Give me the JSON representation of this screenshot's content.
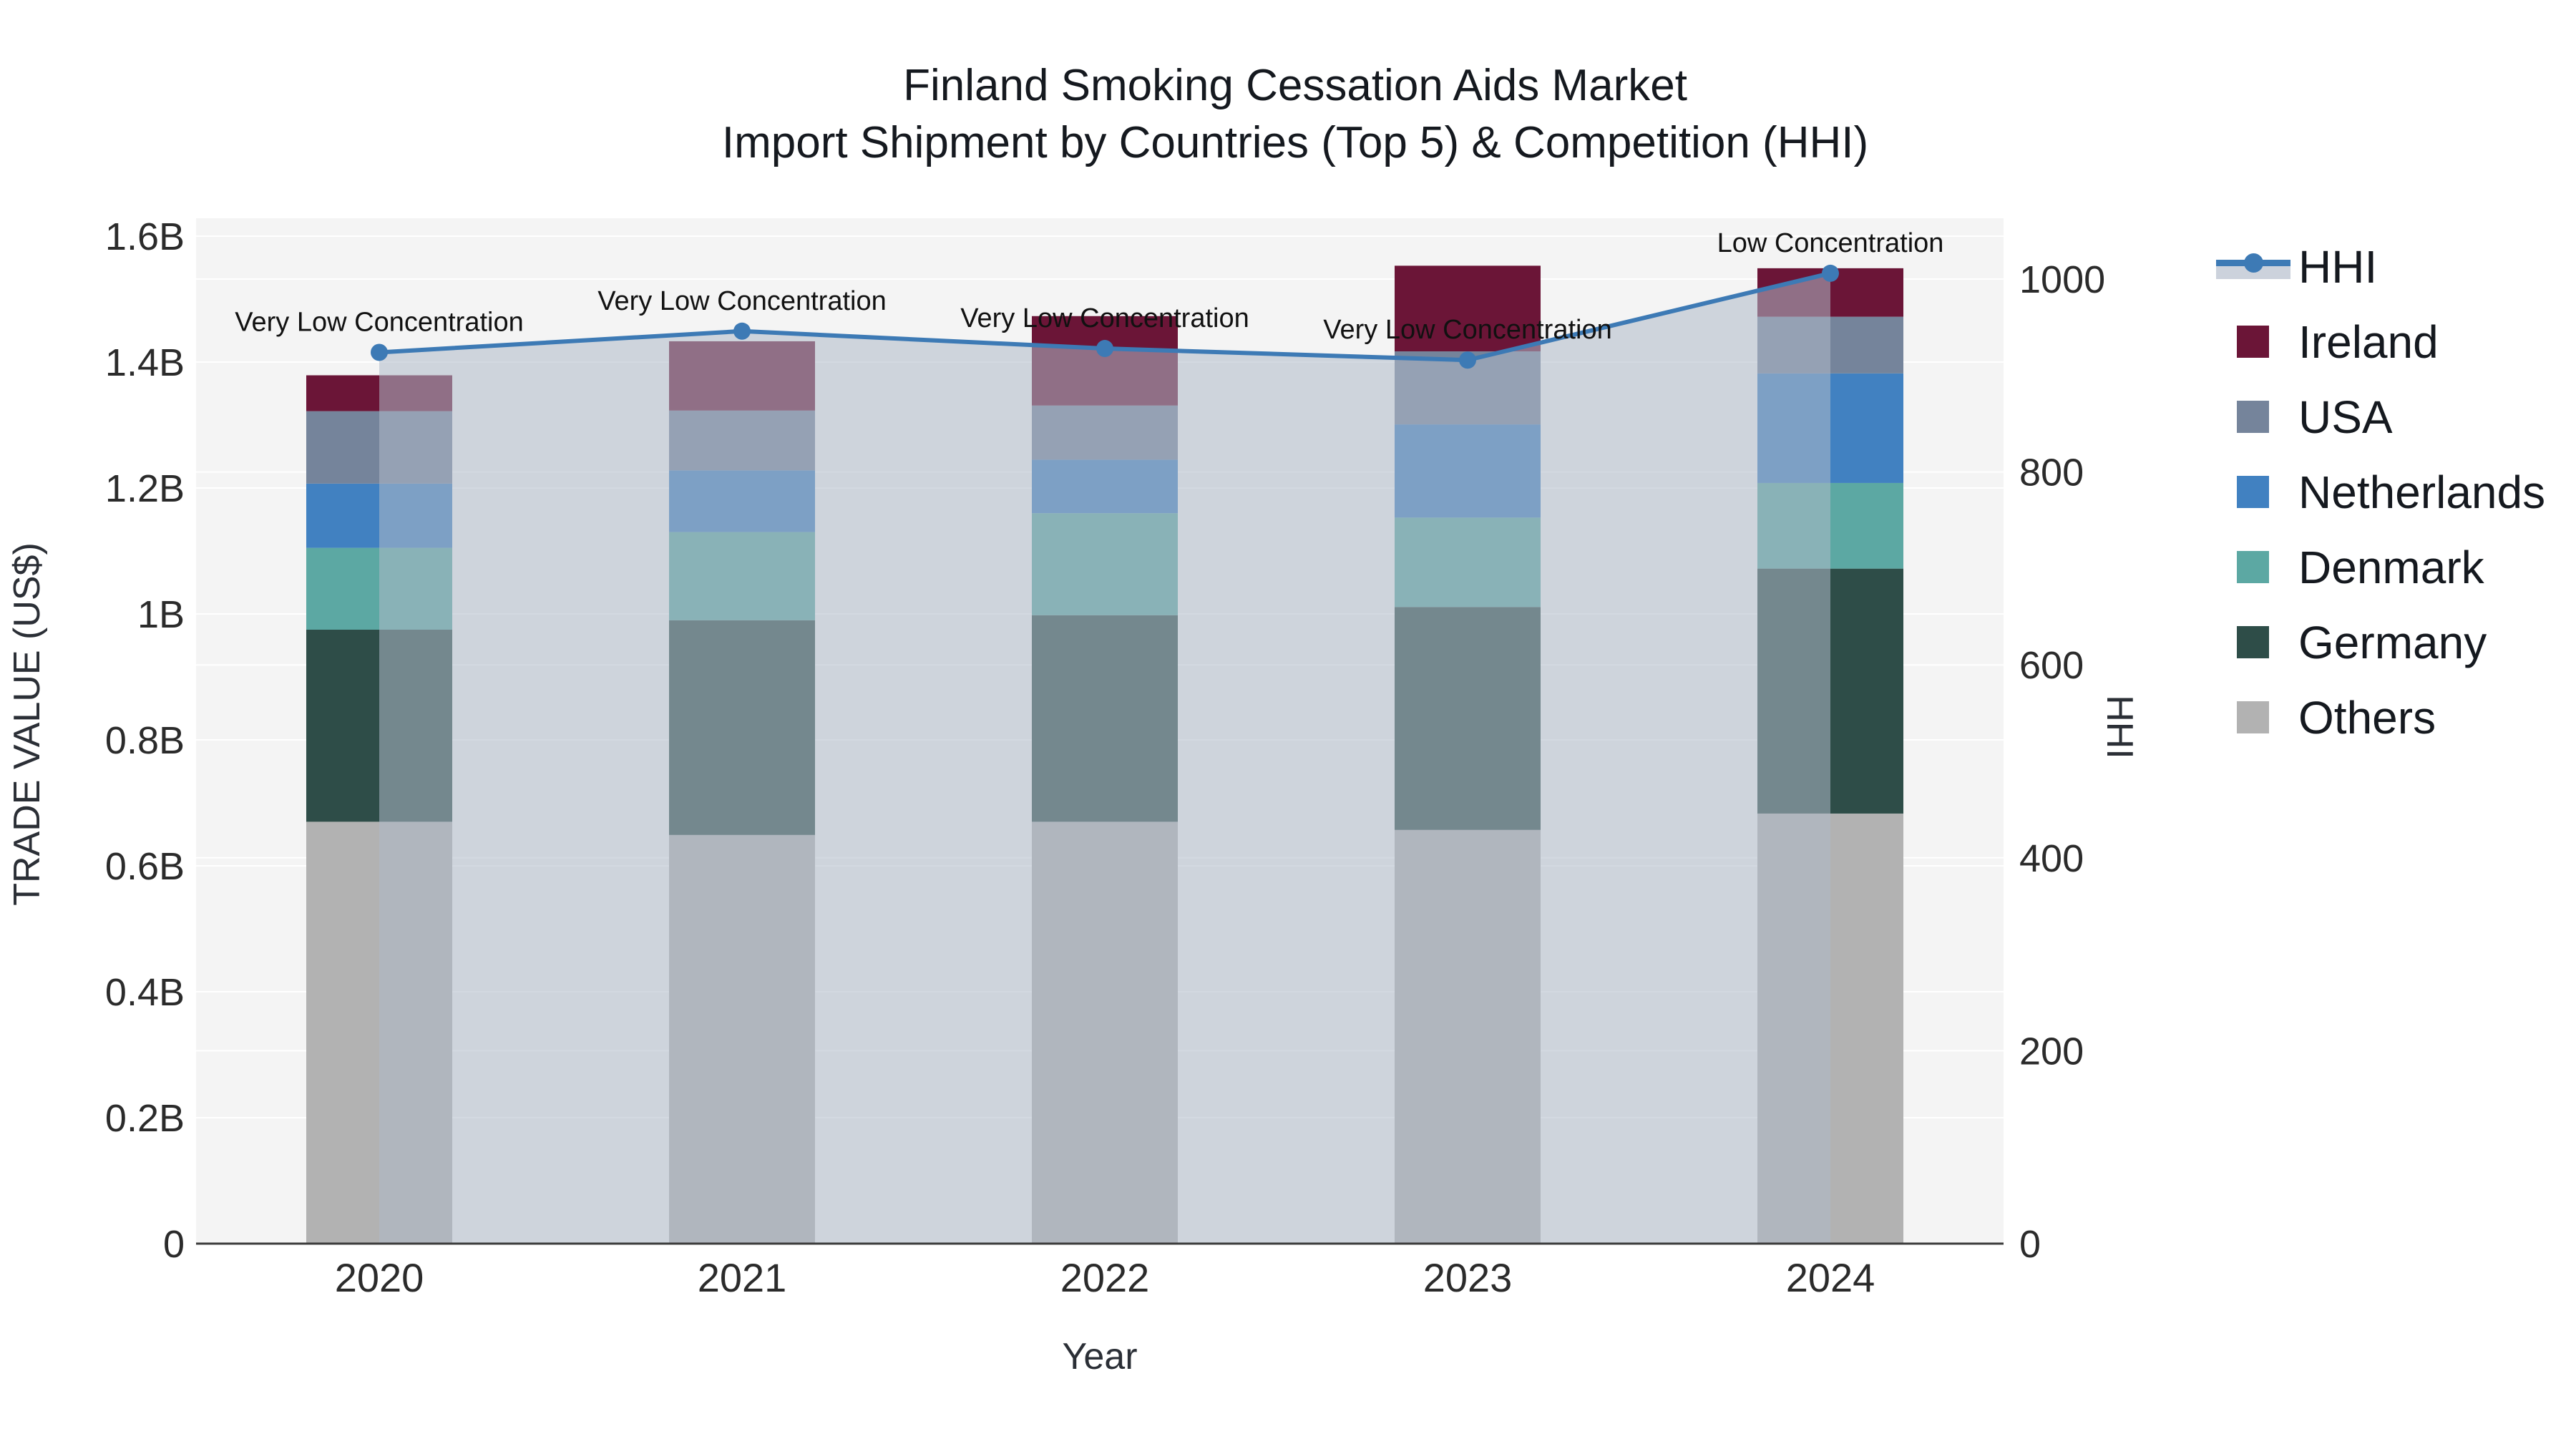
{
  "title": {
    "line1": "Finland Smoking Cessation Aids Market",
    "line2": "Import Shipment by Countries (Top 5) & Competition (HHI)"
  },
  "axes": {
    "x": {
      "title": "Year"
    },
    "left": {
      "title": "TRADE VALUE (US$)",
      "ticks": [
        {
          "label": "1.6B",
          "value": 1.6
        },
        {
          "label": "1.4B",
          "value": 1.4
        },
        {
          "label": "1.2B",
          "value": 1.2
        },
        {
          "label": "1B",
          "value": 1.0
        },
        {
          "label": "0.8B",
          "value": 0.8
        },
        {
          "label": "0.6B",
          "value": 0.6
        },
        {
          "label": "0.4B",
          "value": 0.4
        },
        {
          "label": "0.2B",
          "value": 0.2
        },
        {
          "label": "0",
          "value": 0
        }
      ]
    },
    "right": {
      "title": "HHI",
      "ticks": [
        {
          "label": "1000",
          "value": 1000
        },
        {
          "label": "800",
          "value": 800
        },
        {
          "label": "600",
          "value": 600
        },
        {
          "label": "400",
          "value": 400
        },
        {
          "label": "200",
          "value": 200
        },
        {
          "label": "0",
          "value": 0
        }
      ]
    }
  },
  "legend": {
    "items": [
      {
        "id": "hhi",
        "label": "HHI",
        "type": "line",
        "color": "#3D7AB5"
      },
      {
        "id": "ireland",
        "label": "Ireland",
        "type": "swatch",
        "color": "#6B1537"
      },
      {
        "id": "usa",
        "label": "USA",
        "type": "swatch",
        "color": "#75849B"
      },
      {
        "id": "netherlands",
        "label": "Netherlands",
        "type": "swatch",
        "color": "#4181C1"
      },
      {
        "id": "denmark",
        "label": "Denmark",
        "type": "swatch",
        "color": "#5CA8A3"
      },
      {
        "id": "germany",
        "label": "Germany",
        "type": "swatch",
        "color": "#2E4D48"
      },
      {
        "id": "others",
        "label": "Others",
        "type": "swatch",
        "color": "#B2B2B2"
      }
    ]
  },
  "chart_data": {
    "type": "bar+line",
    "title": "Finland Smoking Cessation Aids Market — Import Shipment by Countries (Top 5) & Competition (HHI)",
    "categories": [
      "2020",
      "2021",
      "2022",
      "2023",
      "2024"
    ],
    "xlabel": "Year",
    "ylabel": "TRADE VALUE (US$)",
    "y2label": "HHI",
    "unit": "billion US$",
    "ylim": [
      0,
      1.63
    ],
    "y2lim": [
      0,
      1063
    ],
    "grid": true,
    "legend_position": "right",
    "plot_bg": "#F4F4F4",
    "grid_color": "#FFFFFF",
    "baseline_color": "#3B3B3B",
    "stack_order_bottom_to_top": [
      "Others",
      "Germany",
      "Denmark",
      "Netherlands",
      "USA",
      "Ireland"
    ],
    "series": [
      {
        "name": "Others",
        "color": "#B2B2B2",
        "values": [
          0.67,
          0.649,
          0.67,
          0.657,
          0.683
        ]
      },
      {
        "name": "Germany",
        "color": "#2E4D48",
        "values": [
          0.305,
          0.341,
          0.328,
          0.354,
          0.389
        ]
      },
      {
        "name": "Denmark",
        "color": "#5CA8A3",
        "values": [
          0.13,
          0.14,
          0.162,
          0.142,
          0.136
        ]
      },
      {
        "name": "Netherlands",
        "color": "#4181C1",
        "values": [
          0.102,
          0.098,
          0.085,
          0.148,
          0.174
        ]
      },
      {
        "name": "USA",
        "color": "#75849B",
        "values": [
          0.115,
          0.095,
          0.086,
          0.116,
          0.09
        ]
      },
      {
        "name": "Ireland",
        "color": "#6B1537",
        "values": [
          0.057,
          0.11,
          0.142,
          0.136,
          0.077
        ]
      }
    ],
    "bar_totals": [
      1.379,
      1.433,
      1.473,
      1.553,
      1.549
    ],
    "hhi": {
      "name": "HHI",
      "color": "#3D7AB5",
      "area_fill": "#AFB9C9",
      "values": [
        924,
        946,
        928,
        916,
        1006
      ],
      "annotations": [
        "Very Low Concentration",
        "Very Low Concentration",
        "Very Low Concentration",
        "Very Low Concentration",
        "Low Concentration"
      ]
    }
  }
}
